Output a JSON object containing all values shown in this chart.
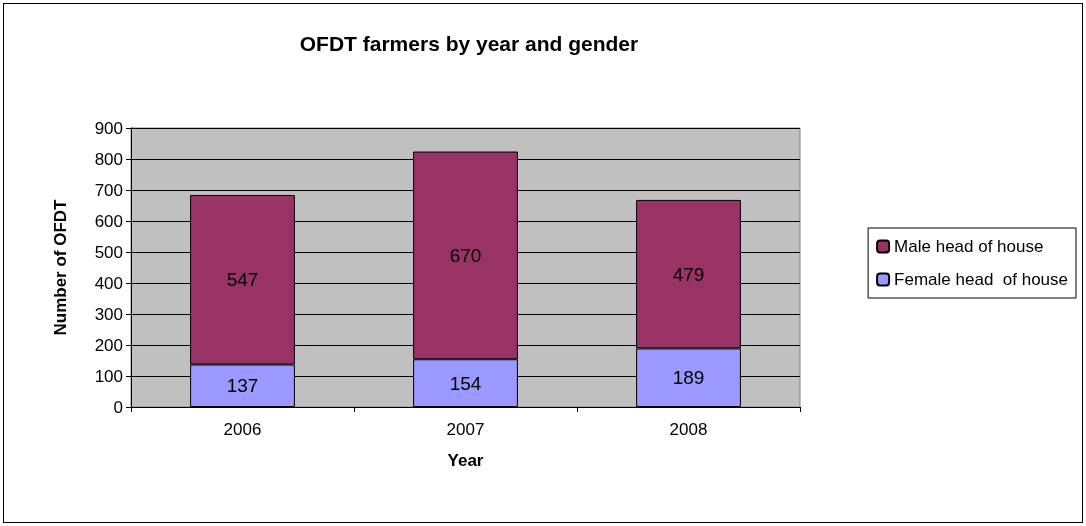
{
  "chart_data": {
    "type": "bar",
    "title": "OFDT farmers by year and gender",
    "xlabel": "Year",
    "ylabel": "Number of OFDT",
    "categories": [
      "2006",
      "2007",
      "2008"
    ],
    "series": [
      {
        "name": "Female head  of house",
        "color": "#9999ff",
        "values": [
          137,
          154,
          189
        ]
      },
      {
        "name": "Male head of house",
        "color": "#993366",
        "values": [
          547,
          670,
          479
        ]
      }
    ],
    "stacked": true,
    "data_labels": true,
    "ylim": [
      0,
      900
    ],
    "yticks": [
      0,
      100,
      200,
      300,
      400,
      500,
      600,
      700,
      800,
      900
    ],
    "grid": "y",
    "legend": "right"
  }
}
